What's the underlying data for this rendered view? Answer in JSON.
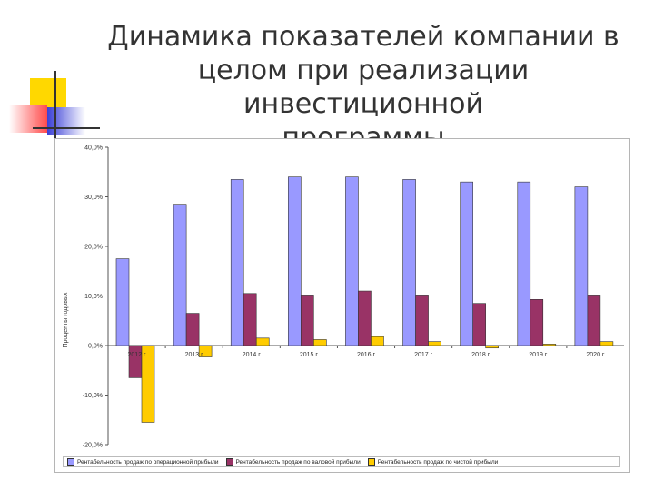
{
  "slide": {
    "title_lines": [
      "Динамика показателей компании в",
      "целом при реализации инвестиционной",
      "программы"
    ]
  },
  "colors": {
    "series_operating": "#9999ff",
    "series_gross": "#993366",
    "series_net": "#ffcc00",
    "deco_yellow": "#ffd800",
    "deco_red": "#ff4b4b",
    "deco_blue": "#3a3fd6"
  },
  "chart_data": {
    "type": "bar",
    "title": "",
    "xlabel": "",
    "ylabel": "Проценты годовых",
    "ylim": [
      -20,
      40
    ],
    "yticks": [
      40,
      30,
      20,
      10,
      0,
      -10,
      -20
    ],
    "ytick_labels": [
      "40,0%",
      "30,0%",
      "20,0%",
      "10,0%",
      "0,0%",
      "-10,0%",
      "-20,0%"
    ],
    "categories": [
      "2012 г",
      "2013 г",
      "2014 г",
      "2015 г",
      "2016 г",
      "2017 г",
      "2018 г",
      "2019 г",
      "2020 г"
    ],
    "grid": false,
    "legend_position": "bottom",
    "series": [
      {
        "name": "Рентабельность продаж по операционной прибыли",
        "color": "#9999ff",
        "values": [
          17.5,
          28.5,
          33.5,
          34.0,
          34.0,
          33.5,
          33.0,
          33.0,
          32.0
        ]
      },
      {
        "name": "Рентабельность продаж по валовой прибыли",
        "color": "#993366",
        "values": [
          -6.5,
          6.5,
          10.5,
          10.2,
          11.0,
          10.2,
          8.5,
          9.3,
          10.2
        ]
      },
      {
        "name": "Рентабельность продаж по чистой прибыли",
        "color": "#ffcc00",
        "values": [
          -15.5,
          -2.3,
          1.5,
          1.2,
          1.8,
          0.8,
          -0.5,
          0.3,
          0.8
        ]
      }
    ]
  }
}
